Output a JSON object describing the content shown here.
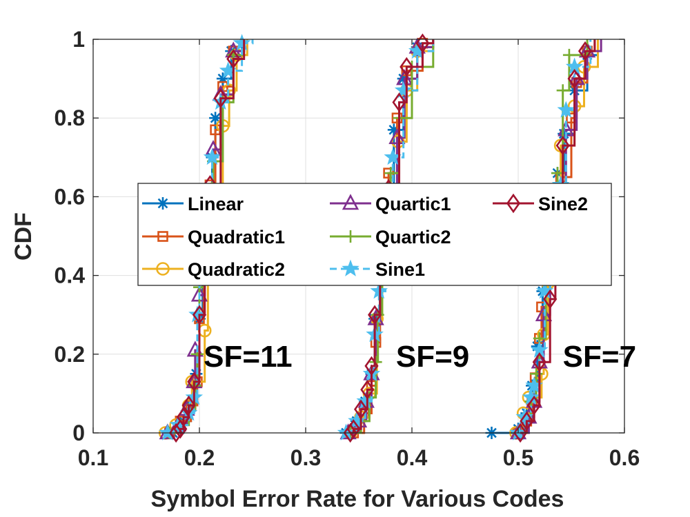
{
  "chart_data": {
    "type": "line",
    "title": "",
    "xlabel": "Symbol Error Rate for Various Codes",
    "ylabel": "CDF",
    "xlim": [
      0.1,
      0.6
    ],
    "ylim": [
      0,
      1
    ],
    "xticks": [
      "0.1",
      "0.2",
      "0.3",
      "0.4",
      "0.5",
      "0.6"
    ],
    "yticks": [
      "0",
      "0.2",
      "0.4",
      "0.6",
      "0.8",
      "1"
    ],
    "grid": true,
    "legend_position": "center",
    "annotations": [
      {
        "text": "SF=11",
        "x": 0.204,
        "y": 0.2
      },
      {
        "text": "SF=9",
        "x": 0.385,
        "y": 0.2
      },
      {
        "text": "SF=7",
        "x": 0.542,
        "y": 0.2
      }
    ],
    "series": [
      {
        "name": "Linear",
        "color": "#0072BD",
        "marker": "asterisk",
        "groups": [
          [
            [
              0.175,
              0
            ],
            [
              0.185,
              0.03
            ],
            [
              0.192,
              0.07
            ],
            [
              0.197,
              0.15
            ],
            [
              0.2,
              0.29
            ],
            [
              0.203,
              0.45
            ],
            [
              0.207,
              0.6
            ],
            [
              0.212,
              0.7
            ],
            [
              0.215,
              0.8
            ],
            [
              0.222,
              0.9
            ],
            [
              0.23,
              0.97
            ],
            [
              0.24,
              1
            ]
          ],
          [
            [
              0.338,
              0
            ],
            [
              0.348,
              0.03
            ],
            [
              0.356,
              0.08
            ],
            [
              0.362,
              0.15
            ],
            [
              0.365,
              0.29
            ],
            [
              0.37,
              0.45
            ],
            [
              0.376,
              0.62
            ],
            [
              0.383,
              0.77
            ],
            [
              0.392,
              0.9
            ],
            [
              0.405,
              0.98
            ],
            [
              0.42,
              1
            ]
          ],
          [
            [
              0.475,
              0
            ],
            [
              0.5,
              0.01
            ],
            [
              0.508,
              0.05
            ],
            [
              0.513,
              0.12
            ],
            [
              0.518,
              0.22
            ],
            [
              0.523,
              0.36
            ],
            [
              0.53,
              0.52
            ],
            [
              0.537,
              0.66
            ],
            [
              0.543,
              0.76
            ],
            [
              0.553,
              0.87
            ],
            [
              0.565,
              0.96
            ],
            [
              0.575,
              1
            ]
          ]
        ]
      },
      {
        "name": "Quadratic1",
        "color": "#D95319",
        "marker": "square",
        "groups": [
          [
            [
              0.172,
              0
            ],
            [
              0.182,
              0.03
            ],
            [
              0.192,
              0.07
            ],
            [
              0.198,
              0.13
            ],
            [
              0.2,
              0.29
            ],
            [
              0.204,
              0.5
            ],
            [
              0.21,
              0.63
            ],
            [
              0.215,
              0.77
            ],
            [
              0.222,
              0.88
            ],
            [
              0.232,
              0.97
            ],
            [
              0.242,
              1
            ]
          ],
          [
            [
              0.345,
              0
            ],
            [
              0.355,
              0.05
            ],
            [
              0.362,
              0.12
            ],
            [
              0.366,
              0.23
            ],
            [
              0.37,
              0.4
            ],
            [
              0.375,
              0.55
            ],
            [
              0.378,
              0.66
            ],
            [
              0.386,
              0.8
            ],
            [
              0.395,
              0.92
            ],
            [
              0.41,
              0.99
            ],
            [
              0.42,
              1
            ]
          ],
          [
            [
              0.5,
              0
            ],
            [
              0.508,
              0.03
            ],
            [
              0.513,
              0.08
            ],
            [
              0.516,
              0.14
            ],
            [
              0.52,
              0.24
            ],
            [
              0.522,
              0.32
            ],
            [
              0.53,
              0.48
            ],
            [
              0.54,
              0.65
            ],
            [
              0.55,
              0.8
            ],
            [
              0.555,
              0.89
            ],
            [
              0.565,
              0.97
            ],
            [
              0.572,
              1
            ]
          ]
        ]
      },
      {
        "name": "Quadratic2",
        "color": "#EDB120",
        "marker": "circle",
        "groups": [
          [
            [
              0.168,
              0
            ],
            [
              0.178,
              0.02
            ],
            [
              0.19,
              0.07
            ],
            [
              0.193,
              0.13
            ],
            [
              0.205,
              0.26
            ],
            [
              0.208,
              0.45
            ],
            [
              0.213,
              0.62
            ],
            [
              0.222,
              0.78
            ],
            [
              0.228,
              0.87
            ],
            [
              0.235,
              0.96
            ],
            [
              0.245,
              1
            ]
          ],
          [
            [
              0.342,
              0
            ],
            [
              0.352,
              0.04
            ],
            [
              0.36,
              0.1
            ],
            [
              0.367,
              0.29
            ],
            [
              0.372,
              0.45
            ],
            [
              0.378,
              0.6
            ],
            [
              0.387,
              0.74
            ],
            [
              0.395,
              0.87
            ],
            [
              0.405,
              0.97
            ],
            [
              0.42,
              1
            ]
          ],
          [
            [
              0.498,
              0
            ],
            [
              0.505,
              0.05
            ],
            [
              0.51,
              0.09
            ],
            [
              0.522,
              0.15
            ],
            [
              0.524,
              0.25
            ],
            [
              0.528,
              0.38
            ],
            [
              0.532,
              0.55
            ],
            [
              0.54,
              0.73
            ],
            [
              0.553,
              0.83
            ],
            [
              0.562,
              0.93
            ],
            [
              0.575,
              1
            ]
          ]
        ]
      },
      {
        "name": "Quartic1",
        "color": "#7E2F8E",
        "marker": "triangle",
        "groups": [
          [
            [
              0.17,
              0
            ],
            [
              0.18,
              0.02
            ],
            [
              0.188,
              0.06
            ],
            [
              0.195,
              0.13
            ],
            [
              0.196,
              0.21
            ],
            [
              0.2,
              0.35
            ],
            [
              0.205,
              0.5
            ],
            [
              0.208,
              0.6
            ],
            [
              0.213,
              0.72
            ],
            [
              0.22,
              0.86
            ],
            [
              0.232,
              0.97
            ],
            [
              0.242,
              1
            ]
          ],
          [
            [
              0.34,
              0
            ],
            [
              0.35,
              0.03
            ],
            [
              0.357,
              0.08
            ],
            [
              0.362,
              0.15
            ],
            [
              0.366,
              0.29
            ],
            [
              0.37,
              0.42
            ],
            [
              0.377,
              0.6
            ],
            [
              0.386,
              0.75
            ],
            [
              0.393,
              0.9
            ],
            [
              0.405,
              0.98
            ],
            [
              0.42,
              1
            ]
          ],
          [
            [
              0.5,
              0
            ],
            [
              0.51,
              0.04
            ],
            [
              0.515,
              0.08
            ],
            [
              0.52,
              0.18
            ],
            [
              0.524,
              0.3
            ],
            [
              0.53,
              0.45
            ],
            [
              0.537,
              0.62
            ],
            [
              0.545,
              0.77
            ],
            [
              0.555,
              0.9
            ],
            [
              0.565,
              0.97
            ],
            [
              0.578,
              1
            ]
          ]
        ]
      },
      {
        "name": "Quartic2",
        "color": "#77AC30",
        "marker": "plus",
        "groups": [
          [
            [
              0.172,
              0
            ],
            [
              0.182,
              0.02
            ],
            [
              0.19,
              0.06
            ],
            [
              0.196,
              0.12
            ],
            [
              0.198,
              0.2
            ],
            [
              0.2,
              0.37
            ],
            [
              0.205,
              0.55
            ],
            [
              0.213,
              0.69
            ],
            [
              0.222,
              0.84
            ],
            [
              0.232,
              0.96
            ],
            [
              0.242,
              1
            ]
          ],
          [
            [
              0.342,
              0
            ],
            [
              0.352,
              0.03
            ],
            [
              0.36,
              0.09
            ],
            [
              0.366,
              0.18
            ],
            [
              0.368,
              0.3
            ],
            [
              0.372,
              0.5
            ],
            [
              0.38,
              0.66
            ],
            [
              0.388,
              0.8
            ],
            [
              0.4,
              0.93
            ],
            [
              0.42,
              1
            ]
          ],
          [
            [
              0.5,
              0
            ],
            [
              0.508,
              0.03
            ],
            [
              0.512,
              0.08
            ],
            [
              0.517,
              0.15
            ],
            [
              0.52,
              0.24
            ],
            [
              0.526,
              0.4
            ],
            [
              0.533,
              0.58
            ],
            [
              0.537,
              0.66
            ],
            [
              0.542,
              0.87
            ],
            [
              0.548,
              0.96
            ],
            [
              0.565,
              1
            ]
          ]
        ]
      },
      {
        "name": "Sine1",
        "color": "#4DBEEE",
        "marker": "star",
        "groups": [
          [
            [
              0.17,
              0
            ],
            [
              0.18,
              0.02
            ],
            [
              0.19,
              0.05
            ],
            [
              0.195,
              0.09
            ],
            [
              0.198,
              0.3
            ],
            [
              0.2,
              0.42
            ],
            [
              0.205,
              0.57
            ],
            [
              0.212,
              0.7
            ],
            [
              0.22,
              0.84
            ],
            [
              0.227,
              0.92
            ],
            [
              0.24,
              0.99
            ],
            [
              0.25,
              1
            ]
          ],
          [
            [
              0.338,
              0
            ],
            [
              0.348,
              0.03
            ],
            [
              0.356,
              0.08
            ],
            [
              0.362,
              0.15
            ],
            [
              0.365,
              0.25
            ],
            [
              0.369,
              0.36
            ],
            [
              0.375,
              0.5
            ],
            [
              0.382,
              0.7
            ],
            [
              0.392,
              0.87
            ],
            [
              0.405,
              0.97
            ],
            [
              0.42,
              1
            ]
          ],
          [
            [
              0.5,
              0
            ],
            [
              0.506,
              0.04
            ],
            [
              0.512,
              0.09
            ],
            [
              0.515,
              0.12
            ],
            [
              0.52,
              0.21
            ],
            [
              0.525,
              0.36
            ],
            [
              0.53,
              0.5
            ],
            [
              0.54,
              0.63
            ],
            [
              0.545,
              0.82
            ],
            [
              0.553,
              0.93
            ],
            [
              0.568,
              1
            ]
          ]
        ]
      },
      {
        "name": "Sine2",
        "color": "#A2142F",
        "marker": "diamond",
        "groups": [
          [
            [
              0.178,
              0
            ],
            [
              0.182,
              0.01
            ],
            [
              0.185,
              0.04
            ],
            [
              0.19,
              0.07
            ],
            [
              0.195,
              0.13
            ],
            [
              0.2,
              0.3
            ],
            [
              0.205,
              0.48
            ],
            [
              0.21,
              0.63
            ],
            [
              0.22,
              0.85
            ],
            [
              0.232,
              0.95
            ],
            [
              0.242,
              1
            ]
          ],
          [
            [
              0.342,
              0
            ],
            [
              0.345,
              0.01
            ],
            [
              0.352,
              0.06
            ],
            [
              0.358,
              0.11
            ],
            [
              0.362,
              0.17
            ],
            [
              0.365,
              0.3
            ],
            [
              0.37,
              0.42
            ],
            [
              0.378,
              0.62
            ],
            [
              0.388,
              0.84
            ],
            [
              0.395,
              0.93
            ],
            [
              0.41,
              0.99
            ],
            [
              0.42,
              1
            ]
          ],
          [
            [
              0.502,
              0
            ],
            [
              0.508,
              0.03
            ],
            [
              0.515,
              0.07
            ],
            [
              0.52,
              0.18
            ],
            [
              0.53,
              0.34
            ],
            [
              0.535,
              0.5
            ],
            [
              0.542,
              0.73
            ],
            [
              0.553,
              0.9
            ],
            [
              0.563,
              0.97
            ],
            [
              0.572,
              1
            ]
          ]
        ]
      }
    ]
  }
}
